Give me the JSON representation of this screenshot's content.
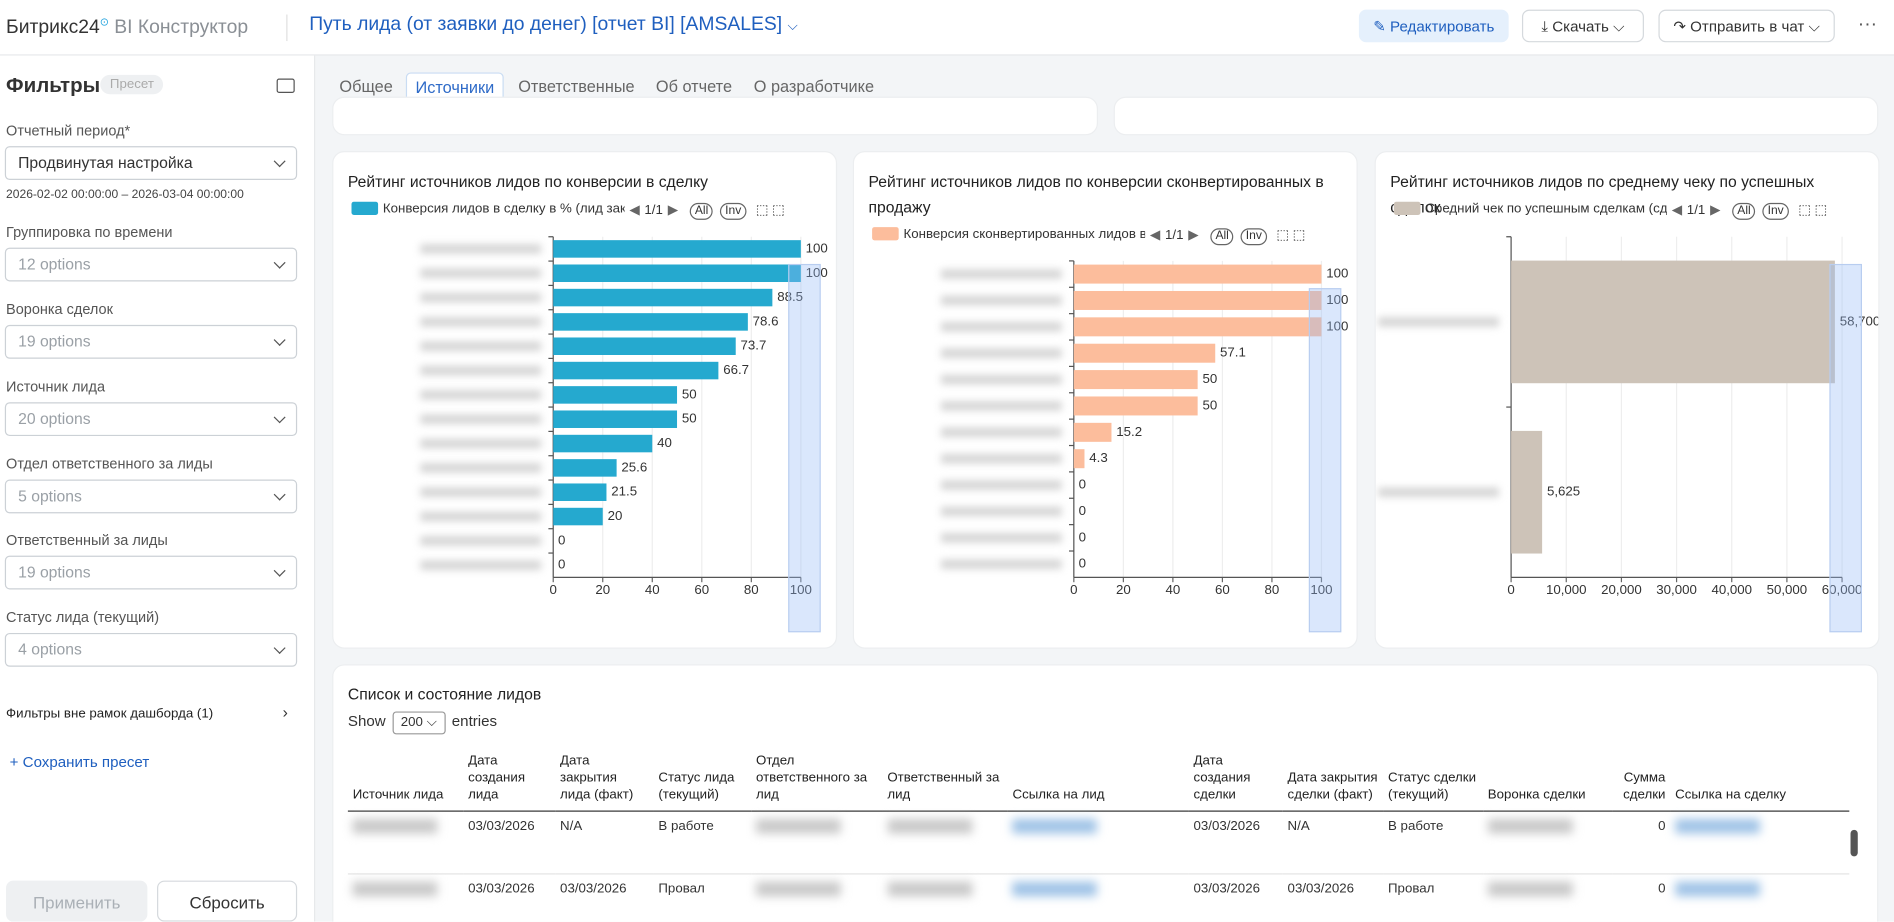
{
  "header": {
    "brand": "Битрикс24",
    "product": "BI Конструктор",
    "report_title": "Путь лида (от заявки до денег) [отчет BI] [AMSALES]",
    "buttons": [
      "Редактировать",
      "Скачать",
      "Отправить в чат"
    ]
  },
  "sidebar": {
    "title": "Фильтры",
    "preset": "Пресет",
    "filters": [
      {
        "label": "Отчетный период*",
        "value": "Продвинутая настройка",
        "note": "2026-02-02 00:00:00 – 2026-03-04 00:00:00"
      },
      {
        "label": "Группировка по времени",
        "value": "12 options"
      },
      {
        "label": "Воронка сделок",
        "value": "19 options"
      },
      {
        "label": "Источник лида",
        "value": "20 options"
      },
      {
        "label": "Отдел ответственного за лиды",
        "value": "5 options"
      },
      {
        "label": "Ответственный за лиды",
        "value": "19 options"
      },
      {
        "label": "Статус лида (текущий)",
        "value": "4 options"
      }
    ],
    "outside_filters": "Фильтры вне рамок дашборда (1)",
    "save_preset": "+ Сохранить пресет",
    "apply": "Применить",
    "reset": "Сбросить"
  },
  "tabs": {
    "items": [
      "Общее",
      "Источники",
      "Ответственные",
      "Об отчете",
      "О разработчике"
    ],
    "active": 1
  },
  "charts": [
    {
      "type": "hbar",
      "title": "Рейтинг источников лидов по конверсии в сделку",
      "legend": "Конверсия лидов в сделку в % (лид закр",
      "page": "1/1",
      "buttons": [
        "All",
        "Inv"
      ],
      "color": "#25a9cf",
      "categories": [
        null,
        null,
        null,
        null,
        null,
        null,
        null,
        null,
        null,
        null,
        null,
        null,
        null,
        null
      ],
      "values": [
        100,
        100,
        88.5,
        78.6,
        73.7,
        66.7,
        50,
        50,
        40,
        25.6,
        21.5,
        20,
        0,
        0
      ],
      "xlim": [
        0,
        100
      ],
      "xticks": [
        0,
        20,
        40,
        60,
        80,
        100
      ]
    },
    {
      "type": "hbar",
      "title": "Рейтинг источников лидов по конверсии сконвертированных в продажу",
      "legend": "Конверсия сконвертированных лидов в",
      "page": "1/1",
      "buttons": [
        "All",
        "Inv"
      ],
      "color": "#fcbd9c",
      "categories": [
        null,
        null,
        null,
        null,
        null,
        null,
        null,
        null,
        null,
        null,
        null,
        null
      ],
      "values": [
        100,
        100,
        100,
        57.1,
        50,
        50,
        15.2,
        4.3,
        0,
        0,
        0,
        0
      ],
      "xlim": [
        0,
        100
      ],
      "xticks": [
        0,
        20,
        40,
        60,
        80,
        100
      ]
    },
    {
      "type": "hbar",
      "title": "Рейтинг источников лидов по среднему чеку по успешных сделок",
      "legend": "Средний чек по успешным сделкам (сде",
      "page": "1/1",
      "buttons": [
        "All",
        "Inv"
      ],
      "color": "#cdc3b8",
      "categories": [
        null,
        null
      ],
      "values": [
        58700,
        5625
      ],
      "value_labels": [
        "58,700",
        "5,625"
      ],
      "xlim": [
        0,
        60000
      ],
      "xticks": [
        0,
        {
          "value": 10000,
          "label": "10,000"
        },
        {
          "value": 20000,
          "label": "20,000"
        },
        {
          "value": 30000,
          "label": "30,000"
        },
        {
          "value": 40000,
          "label": "40,000"
        },
        {
          "value": 50000,
          "label": "50,000"
        },
        {
          "value": 60000,
          "label": "60,000"
        }
      ]
    }
  ],
  "table": {
    "title": "Список и состояние лидов",
    "show": "Show",
    "page_size": "200",
    "entries": "entries",
    "columns": [
      "Источник лида",
      "Дата создания лида",
      "Дата закрытия лида (факт)",
      "Статус лида (текущий)",
      "Отдел ответственного за лид",
      "Ответственный за лид",
      "Ссылка на лид",
      "Дата создания сделки",
      "Дата закрытия сделки (факт)",
      "Статус сделки (текущий)",
      "Воронка сделки",
      "Сумма сделки",
      "Ссылка на сделку"
    ],
    "rows": [
      [
        null,
        "03/03/2026",
        "N/A",
        "В работе",
        null,
        null,
        null,
        "03/03/2026",
        "N/A",
        "В работе",
        null,
        0,
        null
      ],
      [
        null,
        "03/03/2026",
        "03/03/2026",
        "Провал",
        null,
        null,
        null,
        "03/03/2026",
        "03/03/2026",
        "Провал",
        null,
        0,
        null
      ]
    ]
  }
}
